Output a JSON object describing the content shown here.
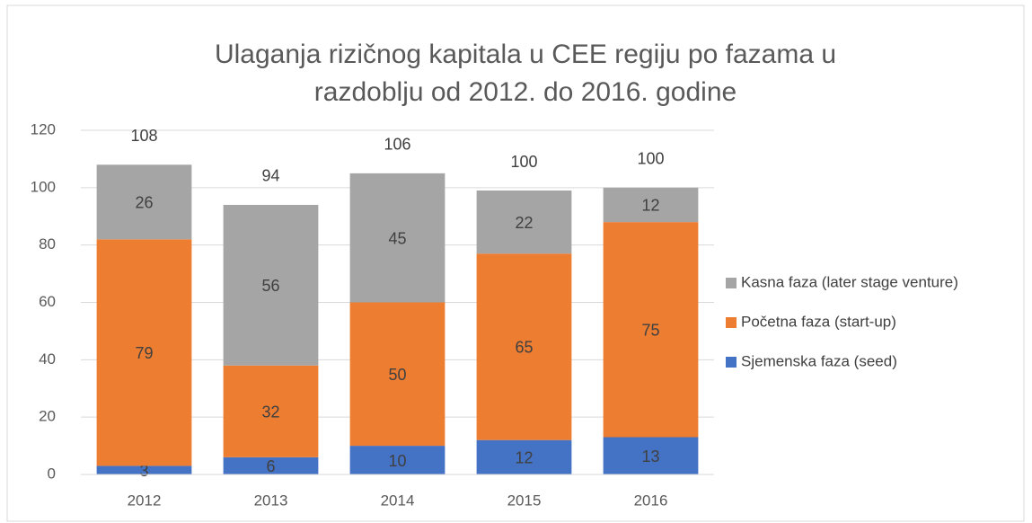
{
  "chart_data": {
    "type": "stacked_bar",
    "title": [
      "Ulaganja rizičnog kapitala u CEE regiju po fazama u",
      "razdoblju od 2012. do 2016. godine"
    ],
    "categories": [
      "2012",
      "2013",
      "2014",
      "2015",
      "2016"
    ],
    "series": [
      {
        "name": "Sjemenska faza (seed)",
        "color": "#4472c4",
        "values": [
          3,
          6,
          10,
          12,
          13
        ]
      },
      {
        "name": "Početna faza (start-up)",
        "color": "#ed7d31",
        "values": [
          79,
          32,
          50,
          65,
          75
        ]
      },
      {
        "name": "Kasna faza (later stage venture)",
        "color": "#a5a5a5",
        "values": [
          26,
          56,
          45,
          22,
          12
        ]
      }
    ],
    "totals": [
      108,
      94,
      106,
      100,
      100
    ],
    "ylim": [
      0,
      120
    ],
    "yticks": [
      0,
      20,
      40,
      60,
      80,
      100,
      120
    ],
    "grid": true,
    "legend": "right"
  }
}
